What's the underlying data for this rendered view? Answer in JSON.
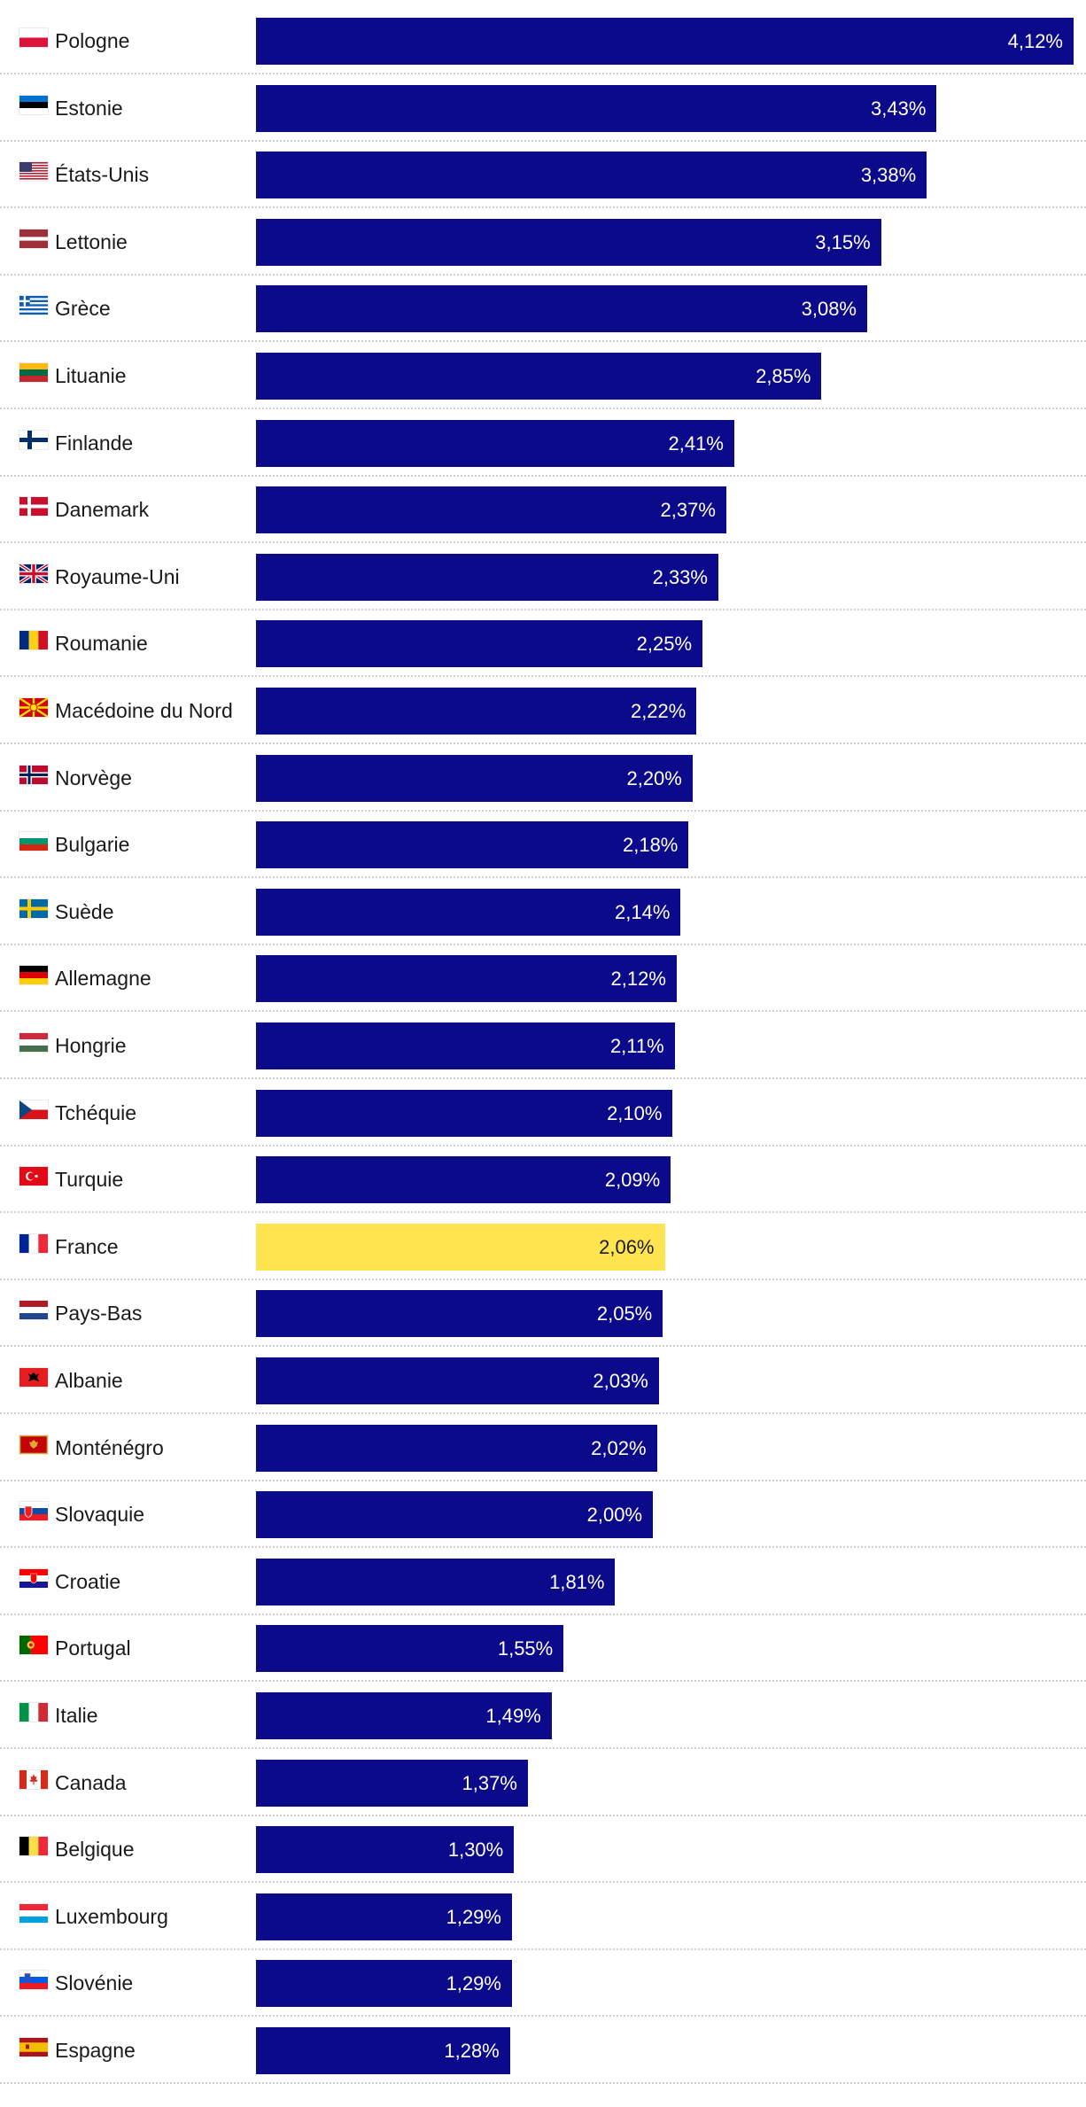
{
  "colors": {
    "bar": "#0a0a8a",
    "highlight": "#ffe34f",
    "text_on_bar": "#ffffff",
    "text_on_highlight": "#1a1a1a"
  },
  "chart_data": {
    "type": "bar",
    "orientation": "horizontal",
    "title": "",
    "xlabel": "",
    "ylabel": "",
    "xlim": [
      0,
      4.12
    ],
    "grid": false,
    "highlight_category": "France",
    "categories": [
      "Pologne",
      "Estonie",
      "États-Unis",
      "Lettonie",
      "Grèce",
      "Lituanie",
      "Finlande",
      "Danemark",
      "Royaume-Uni",
      "Roumanie",
      "Macédoine du Nord",
      "Norvège",
      "Bulgarie",
      "Suède",
      "Allemagne",
      "Hongrie",
      "Tchéquie",
      "Turquie",
      "France",
      "Pays-Bas",
      "Albanie",
      "Monténégro",
      "Slovaquie",
      "Croatie",
      "Portugal",
      "Italie",
      "Canada",
      "Belgique",
      "Luxembourg",
      "Slovénie",
      "Espagne"
    ],
    "values": [
      4.12,
      3.43,
      3.38,
      3.15,
      3.08,
      2.85,
      2.41,
      2.37,
      2.33,
      2.25,
      2.22,
      2.2,
      2.18,
      2.14,
      2.12,
      2.11,
      2.1,
      2.09,
      2.06,
      2.05,
      2.03,
      2.02,
      2.0,
      1.81,
      1.55,
      1.49,
      1.37,
      1.3,
      1.29,
      1.29,
      1.28
    ],
    "value_labels": [
      "4,12%",
      "3,43%",
      "3,38%",
      "3,15%",
      "3,08%",
      "2,85%",
      "2,41%",
      "2,37%",
      "2,33%",
      "2,25%",
      "2,22%",
      "2,20%",
      "2,18%",
      "2,14%",
      "2,12%",
      "2,11%",
      "2,10%",
      "2,09%",
      "2,06%",
      "2,05%",
      "2,03%",
      "2,02%",
      "2,00%",
      "1,81%",
      "1,55%",
      "1,49%",
      "1,37%",
      "1,30%",
      "1,29%",
      "1,29%",
      "1,28%"
    ],
    "flag_icons": [
      "flag-poland-icon",
      "flag-estonia-icon",
      "flag-usa-icon",
      "flag-latvia-icon",
      "flag-greece-icon",
      "flag-lithuania-icon",
      "flag-finland-icon",
      "flag-denmark-icon",
      "flag-uk-icon",
      "flag-romania-icon",
      "flag-north-macedonia-icon",
      "flag-norway-icon",
      "flag-bulgaria-icon",
      "flag-sweden-icon",
      "flag-germany-icon",
      "flag-hungary-icon",
      "flag-czechia-icon",
      "flag-turkey-icon",
      "flag-france-icon",
      "flag-netherlands-icon",
      "flag-albania-icon",
      "flag-montenegro-icon",
      "flag-slovakia-icon",
      "flag-croatia-icon",
      "flag-portugal-icon",
      "flag-italy-icon",
      "flag-canada-icon",
      "flag-belgium-icon",
      "flag-luxembourg-icon",
      "flag-slovenia-icon",
      "flag-spain-icon"
    ]
  }
}
